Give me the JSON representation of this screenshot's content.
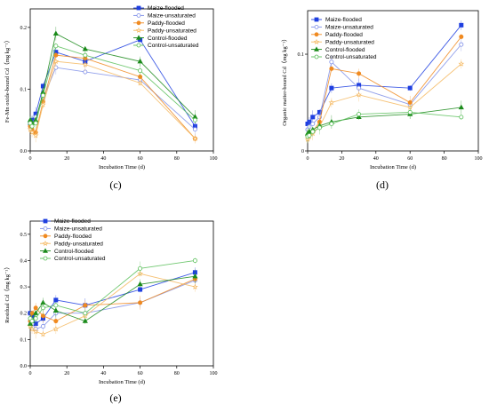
{
  "series_styles": [
    {
      "name": "Maize-flooded",
      "color": "#1f3fe0",
      "marker": "square",
      "filled": true
    },
    {
      "name": "Maize-unsaturated",
      "color": "#7f8fe8",
      "marker": "circle",
      "filled": false
    },
    {
      "name": "Paddy-flooded",
      "color": "#f08a20",
      "marker": "circle",
      "filled": true
    },
    {
      "name": "Paddy-unsaturated",
      "color": "#f5b860",
      "marker": "star",
      "filled": false
    },
    {
      "name": "Control-flooded",
      "color": "#1a8a1a",
      "marker": "triangle",
      "filled": true
    },
    {
      "name": "Control-unsaturated",
      "color": "#5abf5a",
      "marker": "circle",
      "filled": false
    }
  ],
  "chart_data": [
    {
      "type": "line",
      "panel_label": "(c)",
      "xlabel": "Incubation Time (d)",
      "ylabel": "Fe-Mn oxide-bound Cd（mg kg⁻¹）",
      "xlim": [
        0,
        100
      ],
      "ylim": [
        0,
        0.23
      ],
      "xticks": [
        0,
        20,
        40,
        60,
        80,
        100
      ],
      "yticks": [
        0.0,
        0.1,
        0.2
      ],
      "ytick_labels": [
        "0.0",
        "0.1",
        "0.2"
      ],
      "x": [
        0,
        1,
        3,
        7,
        14,
        30,
        60,
        90
      ],
      "series": [
        {
          "name": "Maize-flooded",
          "values": [
            0.045,
            0.05,
            0.06,
            0.105,
            0.16,
            0.145,
            0.18,
            0.04
          ]
        },
        {
          "name": "Maize-unsaturated",
          "values": [
            0.04,
            0.045,
            0.055,
            0.085,
            0.135,
            0.128,
            0.115,
            0.035
          ]
        },
        {
          "name": "Paddy-flooded",
          "values": [
            0.04,
            0.035,
            0.03,
            0.08,
            0.155,
            0.15,
            0.12,
            0.02
          ]
        },
        {
          "name": "Paddy-unsaturated",
          "values": [
            0.035,
            0.03,
            0.025,
            0.075,
            0.145,
            0.14,
            0.11,
            0.02
          ]
        },
        {
          "name": "Control-flooded",
          "values": [
            0.05,
            0.045,
            0.05,
            0.095,
            0.19,
            0.165,
            0.145,
            0.055
          ]
        },
        {
          "name": "Control-unsaturated",
          "values": [
            0.045,
            0.04,
            0.045,
            0.09,
            0.17,
            0.155,
            0.13,
            0.05
          ]
        }
      ],
      "legend": "top-right"
    },
    {
      "type": "line",
      "panel_label": "(d)",
      "xlabel": "Incubation Time (d)",
      "ylabel": "Organic matter-bound Cd（mg kg⁻¹）",
      "xlim": [
        0,
        100
      ],
      "ylim": [
        0,
        0.145
      ],
      "xticks": [
        0,
        20,
        40,
        60,
        80,
        100
      ],
      "yticks": [
        0.0,
        0.1
      ],
      "ytick_labels": [
        "0",
        "0.1"
      ],
      "x": [
        0,
        1,
        3,
        7,
        14,
        30,
        60,
        90
      ],
      "series": [
        {
          "name": "Maize-flooded",
          "values": [
            0.028,
            0.03,
            0.035,
            0.04,
            0.065,
            0.068,
            0.065,
            0.13
          ]
        },
        {
          "name": "Maize-unsaturated",
          "values": [
            0.022,
            0.025,
            0.028,
            0.035,
            0.092,
            0.065,
            0.048,
            0.11
          ]
        },
        {
          "name": "Paddy-flooded",
          "values": [
            0.015,
            0.018,
            0.02,
            0.03,
            0.085,
            0.08,
            0.05,
            0.118
          ]
        },
        {
          "name": "Paddy-unsaturated",
          "values": [
            0.012,
            0.015,
            0.018,
            0.025,
            0.05,
            0.058,
            0.045,
            0.09
          ]
        },
        {
          "name": "Control-flooded",
          "values": [
            0.018,
            0.02,
            0.022,
            0.026,
            0.03,
            0.035,
            0.038,
            0.045
          ]
        },
        {
          "name": "Control-unsaturated",
          "values": [
            0.015,
            0.016,
            0.02,
            0.024,
            0.028,
            0.038,
            0.04,
            0.035
          ]
        }
      ],
      "legend": "top-left"
    },
    {
      "type": "line",
      "panel_label": "(e)",
      "xlabel": "Incubation Time (d)",
      "ylabel": "Residual Cd（mg kg⁻¹）",
      "xlim": [
        0,
        100
      ],
      "ylim": [
        0.0,
        0.55
      ],
      "xticks": [
        0,
        20,
        40,
        60,
        80,
        100
      ],
      "yticks": [
        0.0,
        0.1,
        0.2,
        0.3,
        0.4,
        0.5
      ],
      "ytick_labels": [
        "0.0",
        "0.1",
        "0.2",
        "0.3",
        "0.4",
        "0.5"
      ],
      "x": [
        0,
        1,
        3,
        7,
        14,
        30,
        60,
        90
      ],
      "series": [
        {
          "name": "Maize-flooded",
          "values": [
            0.2,
            0.19,
            0.16,
            0.18,
            0.25,
            0.23,
            0.29,
            0.355
          ]
        },
        {
          "name": "Maize-unsaturated",
          "values": [
            0.17,
            0.16,
            0.14,
            0.15,
            0.2,
            0.2,
            0.24,
            0.325
          ]
        },
        {
          "name": "Paddy-flooded",
          "values": [
            0.17,
            0.2,
            0.22,
            0.19,
            0.17,
            0.23,
            0.24,
            0.33
          ]
        },
        {
          "name": "Paddy-unsaturated",
          "values": [
            0.15,
            0.14,
            0.13,
            0.12,
            0.14,
            0.19,
            0.35,
            0.3
          ]
        },
        {
          "name": "Control-flooded",
          "values": [
            0.16,
            0.17,
            0.2,
            0.24,
            0.21,
            0.17,
            0.31,
            0.34
          ]
        },
        {
          "name": "Control-unsaturated",
          "values": [
            0.18,
            0.17,
            0.18,
            0.22,
            0.23,
            0.2,
            0.37,
            0.4
          ]
        }
      ],
      "legend": "top-left"
    }
  ]
}
